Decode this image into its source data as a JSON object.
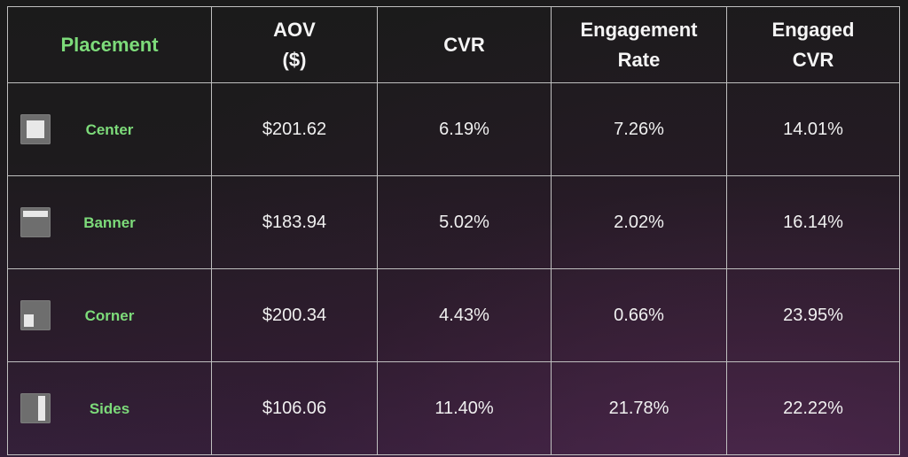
{
  "table": {
    "headers": {
      "placement": "Placement",
      "aov": "AOV\n($)",
      "cvr": "CVR",
      "engagement_rate": "Engagement\nRate",
      "engaged_cvr": "Engaged\nCVR"
    },
    "rows": [
      {
        "placement": "Center",
        "icon": "center-placement-icon",
        "aov": "$201.62",
        "cvr": "6.19%",
        "engagement_rate": "7.26%",
        "engaged_cvr": "14.01%"
      },
      {
        "placement": "Banner",
        "icon": "banner-placement-icon",
        "aov": "$183.94",
        "cvr": "5.02%",
        "engagement_rate": "2.02%",
        "engaged_cvr": "16.14%"
      },
      {
        "placement": "Corner",
        "icon": "corner-placement-icon",
        "aov": "$200.34",
        "cvr": "4.43%",
        "engagement_rate": "0.66%",
        "engaged_cvr": "23.95%"
      },
      {
        "placement": "Sides",
        "icon": "sides-placement-icon",
        "aov": "$106.06",
        "cvr": "11.40%",
        "engagement_rate": "21.78%",
        "engaged_cvr": "22.22%"
      }
    ]
  },
  "colors": {
    "accent_green": "#7ddb7a",
    "border": "#bfbfbf",
    "background_top": "#1b1b1b",
    "background_bottom": "#34203a"
  },
  "chart_data": {
    "type": "table",
    "columns": [
      "Placement",
      "AOV ($)",
      "CVR",
      "Engagement Rate",
      "Engaged CVR"
    ],
    "rows": [
      [
        "Center",
        "$201.62",
        "6.19%",
        "7.26%",
        "14.01%"
      ],
      [
        "Banner",
        "$183.94",
        "5.02%",
        "2.02%",
        "16.14%"
      ],
      [
        "Corner",
        "$200.34",
        "4.43%",
        "0.66%",
        "23.95%"
      ],
      [
        "Sides",
        "$106.06",
        "11.40%",
        "21.78%",
        "22.22%"
      ]
    ],
    "values": {
      "aov": [
        201.62,
        183.94,
        200.34,
        106.06
      ],
      "cvr": [
        6.19,
        5.02,
        4.43,
        11.4
      ],
      "engagement_rate": [
        7.26,
        2.02,
        0.66,
        21.78
      ],
      "engaged_cvr": [
        14.01,
        16.14,
        23.95,
        22.22
      ]
    }
  }
}
